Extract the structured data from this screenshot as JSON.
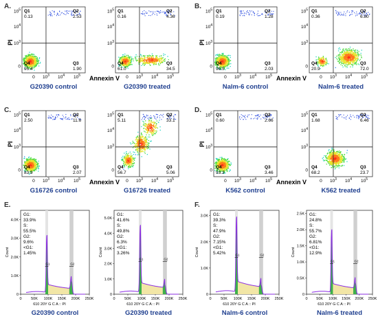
{
  "panel_letters": [
    "A.",
    "B.",
    "C.",
    "D.",
    "E.",
    "F."
  ],
  "axis_titles": {
    "x": "Annexin V",
    "y": "PI",
    "count": "Count",
    "hist_x": "610 20Y G C A :: PI"
  },
  "chart_data": [
    {
      "type": "scatter",
      "panel": "A",
      "caption": "G20390 control",
      "quadrants": {
        "Q1": "0.13",
        "Q2": "2.53",
        "Q3": "1.90",
        "Q4": "95.4"
      },
      "x_ticks": [
        "0",
        "10^3",
        "10^4",
        "10^5"
      ],
      "y_ticks": [
        "0",
        "10^3",
        "10^4",
        "10^5"
      ],
      "cluster": "lower-left"
    },
    {
      "type": "scatter",
      "panel": "A",
      "caption": "G20390 treated",
      "quadrants": {
        "Q1": "0.16",
        "Q2": "4.36",
        "Q3": "34.5",
        "Q4": "61.0"
      },
      "x_ticks": [
        "0",
        "10^3",
        "10^4",
        "10^5"
      ],
      "y_ticks": [
        "0",
        "10^3",
        "10^4",
        "10^5"
      ],
      "cluster": "lower-left-to-right"
    },
    {
      "type": "scatter",
      "panel": "B",
      "caption": "Nalm-6 control",
      "quadrants": {
        "Q1": "0.19",
        "Q2": "1.28",
        "Q3": "2.03",
        "Q4": "96.5"
      },
      "x_ticks": [
        "0",
        "10^3",
        "10^4",
        "10^5"
      ],
      "y_ticks": [
        "0",
        "10^3",
        "10^4",
        "10^5"
      ],
      "cluster": "lower-left"
    },
    {
      "type": "scatter",
      "panel": "B",
      "caption": "Nalm-6 treated",
      "quadrants": {
        "Q1": "0.36",
        "Q2": "6.80",
        "Q3": "72.0",
        "Q4": "20.9"
      },
      "x_ticks": [
        "0",
        "10^3",
        "10^4",
        "10^5"
      ],
      "y_ticks": [
        "0",
        "10^3",
        "10^4",
        "10^5"
      ],
      "cluster": "lower-right"
    },
    {
      "type": "scatter",
      "panel": "C",
      "caption": "G16726 control",
      "quadrants": {
        "Q1": "2.50",
        "Q2": "11.6",
        "Q3": "2.07",
        "Q4": "83.9"
      },
      "x_ticks": [
        "0",
        "10^3",
        "10^4",
        "10^5"
      ],
      "y_ticks": [
        "0",
        "10^3",
        "10^4",
        "10^5"
      ],
      "cluster": "lower-left"
    },
    {
      "type": "scatter",
      "panel": "C",
      "caption": "G16726 treated",
      "quadrants": {
        "Q1": "5.11",
        "Q2": "33.1",
        "Q3": "5.06",
        "Q4": "56.7"
      },
      "x_ticks": [
        "0",
        "10^3",
        "10^4",
        "10^5"
      ],
      "y_ticks": [
        "0",
        "10^3",
        "10^4",
        "10^5"
      ],
      "cluster": "diagonal"
    },
    {
      "type": "scatter",
      "panel": "D",
      "caption": "K562 control",
      "quadrants": {
        "Q1": "0.60",
        "Q2": "2.66",
        "Q3": "3.46",
        "Q4": "93.3"
      },
      "x_ticks": [
        "0",
        "10^3",
        "10^4",
        "10^5"
      ],
      "y_ticks": [
        "0",
        "10^3",
        "10^4",
        "10^5"
      ],
      "cluster": "lower-left"
    },
    {
      "type": "scatter",
      "panel": "D",
      "caption": "K562 treated",
      "quadrants": {
        "Q1": "1.68",
        "Q2": "6.46",
        "Q3": "23.7",
        "Q4": "68.2"
      },
      "x_ticks": [
        "0",
        "10^3",
        "10^4",
        "10^5"
      ],
      "y_ticks": [
        "0",
        "10^3",
        "10^4",
        "10^5"
      ],
      "cluster": "lower-middle"
    },
    {
      "type": "area",
      "panel": "E",
      "caption": "G20390 control",
      "stats": {
        "G1": "33.9%",
        "S": "55.5%",
        "G2": "9.6%",
        "subG1": "1.45%"
      },
      "stat_labels": [
        "G1:",
        "S:",
        "G2:",
        "<G1:"
      ],
      "y_ticks": [
        "0",
        "1.0K",
        "2.0K",
        "3.0K",
        "4.0K"
      ],
      "ylim": [
        0,
        4500
      ],
      "x_ticks": [
        "0",
        "50K",
        "100K",
        "150K",
        "200K",
        "250K"
      ],
      "g1_peak": {
        "x": 95,
        "y": 3000
      },
      "g2_peak": {
        "x": 185,
        "y": 700
      },
      "xlim": [
        0,
        250
      ]
    },
    {
      "type": "area",
      "panel": "E",
      "caption": "G20390 treated",
      "stats": {
        "G1": "41.6%",
        "S": "49.8%",
        "G2": "6.3%",
        "subG1": "3.26%"
      },
      "stat_labels": [
        "G1:",
        "S:",
        "G2:",
        "<G1:"
      ],
      "y_ticks": [
        "0",
        "1.0K",
        "2.0K",
        "3.0K",
        "4.0K",
        "5.0K"
      ],
      "ylim": [
        0,
        5500
      ],
      "x_ticks": [
        "0",
        "50K",
        "100K",
        "150K",
        "200K",
        "250K"
      ],
      "g1_peak": {
        "x": 95,
        "y": 4300
      },
      "g2_peak": {
        "x": 185,
        "y": 600
      },
      "xlim": [
        0,
        250
      ]
    },
    {
      "type": "area",
      "panel": "F",
      "caption": "Nalm-6 control",
      "stats": {
        "G1": "39.3%",
        "S": "47.9%",
        "G2": "7.15%",
        "subG1": "5.42%"
      },
      "stat_labels": [
        "G1:",
        "S:",
        "G2:",
        "<G1:"
      ],
      "y_ticks": [
        "0",
        "1.0K",
        "2.0K",
        "3.0K"
      ],
      "ylim": [
        0,
        3200
      ],
      "x_ticks": [
        "0",
        "50K",
        "100K",
        "150K",
        "200K",
        "250K"
      ],
      "g1_peak": {
        "x": 95,
        "y": 2800
      },
      "g2_peak": {
        "x": 185,
        "y": 350
      },
      "xlim": [
        0,
        250
      ]
    },
    {
      "type": "area",
      "panel": "F",
      "caption": "Nalm-6 treated",
      "stats": {
        "G1": "24.8%",
        "S": "55.7%",
        "G2": "6.81%",
        "subG1": "12.9%"
      },
      "stat_labels": [
        "G1:",
        "S:",
        "G2:",
        "<G1:"
      ],
      "y_ticks": [
        "0",
        "0.5K",
        "1.0K",
        "1.5K",
        "2.0K",
        "2.5K"
      ],
      "ylim": [
        0,
        2600
      ],
      "x_ticks": [
        "0",
        "50K",
        "100K",
        "150K",
        "200K",
        "250K"
      ],
      "g1_peak": {
        "x": 95,
        "y": 1900
      },
      "g2_peak": {
        "x": 185,
        "y": 350
      },
      "xlim": [
        0,
        250
      ]
    }
  ]
}
